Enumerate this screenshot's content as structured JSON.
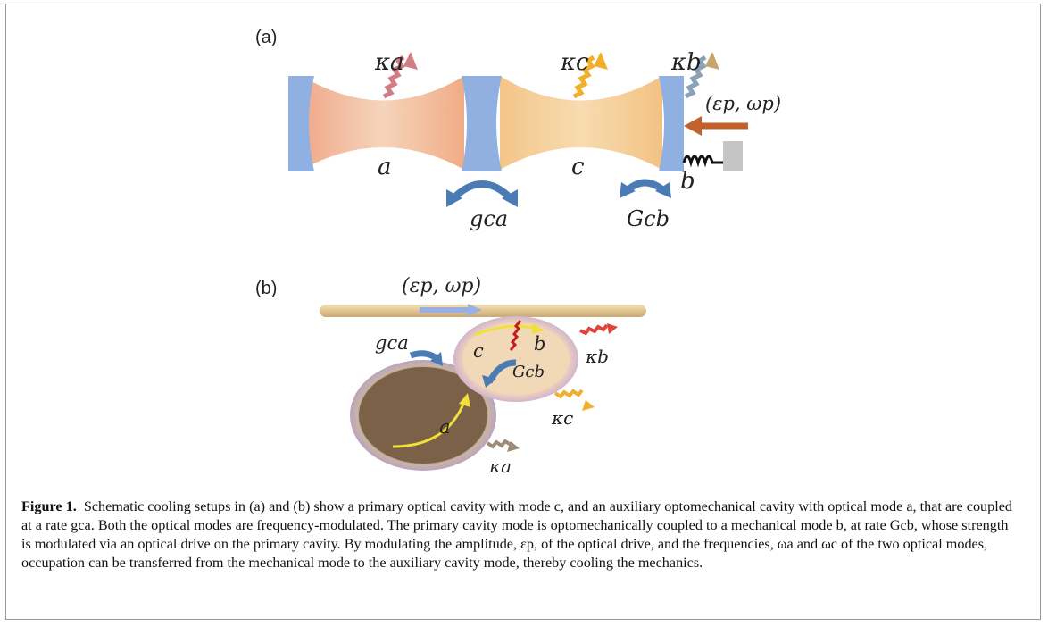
{
  "panel_a": {
    "label": "(a)",
    "kappa_a": "κa",
    "kappa_c": "κc",
    "kappa_b": "κb",
    "drive": "(εp, ωp)",
    "mode_a": "a",
    "mode_c": "c",
    "mode_b": "b",
    "g_ca": "gca",
    "G_cb": "Gcb"
  },
  "panel_b": {
    "label": "(b)",
    "drive": "(εp, ωp)",
    "g_ca": "gca",
    "mode_c": "c",
    "mode_b": "b",
    "G_cb": "Gcb",
    "kappa_b": "κb",
    "kappa_c": "κc",
    "mode_a": "a",
    "kappa_a": "κa"
  },
  "caption": {
    "lead": "Figure 1.",
    "text": "Schematic cooling setups in (a) and (b) show a primary optical cavity with mode c, and an auxiliary optomechanical cavity with optical mode a, that are coupled at a rate gca. Both the optical modes are frequency-modulated. The primary cavity mode is optomechanically coupled to a mechanical mode b, at rate Gcb, whose strength is modulated via an optical drive on the primary cavity. By modulating the amplitude, εp, of the optical drive, and the frequencies, ωa and ωc of the two optical modes, occupation can be transferred from the mechanical mode to the auxiliary cavity mode, thereby cooling the mechanics."
  },
  "colors": {
    "mirror": "#8fb0e0",
    "mode_a": "#f2b48f",
    "mode_c": "#f4c88a",
    "arrow_blue": "#4a7bb4",
    "drive_arrow": "#c0622a",
    "waveguide": "#e8cf9e"
  }
}
